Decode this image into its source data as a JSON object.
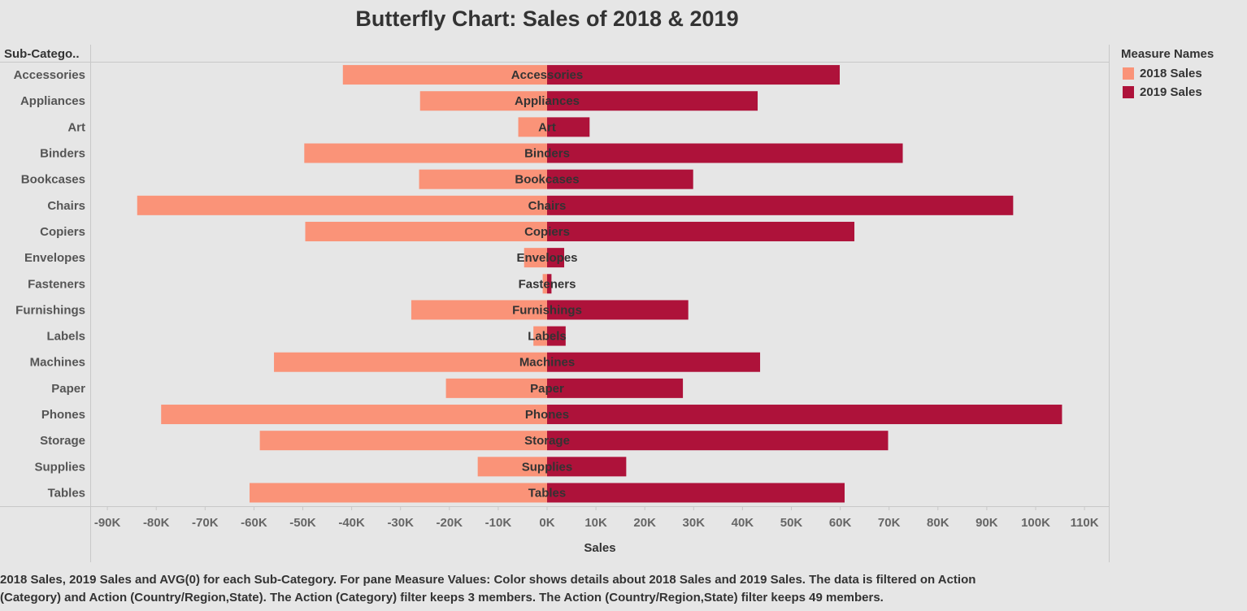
{
  "title": "Butterfly Chart: Sales of 2018 & 2019",
  "row_header": "Sub-Catego..",
  "legend": {
    "title": "Measure Names",
    "items": [
      {
        "label": "2018 Sales",
        "color": "#fa9378"
      },
      {
        "label": "2019 Sales",
        "color": "#ae123a"
      }
    ]
  },
  "caption": {
    "line1": "2018 Sales, 2019 Sales and AVG(0) for each Sub-Category.  For pane Measure Values:  Color shows details about 2018 Sales and 2019 Sales. The data is filtered on Action",
    "line2": "(Category) and Action (Country/Region,State). The Action (Category) filter keeps 3 members. The Action (Country/Region,State) filter keeps 49 members."
  },
  "chart_data": {
    "type": "bar",
    "orientation": "horizontal-diverging",
    "categories": [
      "Accessories",
      "Appliances",
      "Art",
      "Binders",
      "Bookcases",
      "Chairs",
      "Copiers",
      "Envelopes",
      "Fasteners",
      "Furnishings",
      "Labels",
      "Machines",
      "Paper",
      "Phones",
      "Storage",
      "Supplies",
      "Tables"
    ],
    "series": [
      {
        "name": "2018 Sales",
        "color": "#fa9378",
        "values": [
          -41800,
          -26000,
          -5900,
          -49700,
          -26200,
          -83900,
          -49500,
          -4700,
          -900,
          -27800,
          -2800,
          -55900,
          -20700,
          -79000,
          -58800,
          -14200,
          -60900
        ]
      },
      {
        "name": "2019 Sales",
        "color": "#ae123a",
        "values": [
          59900,
          43100,
          8700,
          72800,
          29900,
          95400,
          62900,
          3500,
          900,
          28900,
          3800,
          43600,
          27800,
          105400,
          69800,
          16200,
          60900
        ]
      }
    ],
    "xlabel": "Sales",
    "ylabel": "Sub-Catego..",
    "xlim": [
      -93000,
      115000
    ],
    "xticks": [
      -90000,
      -80000,
      -70000,
      -60000,
      -50000,
      -40000,
      -30000,
      -20000,
      -10000,
      0,
      10000,
      20000,
      30000,
      40000,
      50000,
      60000,
      70000,
      80000,
      90000,
      100000,
      110000
    ],
    "xtick_labels": [
      "-90K",
      "-80K",
      "-70K",
      "-60K",
      "-50K",
      "-40K",
      "-30K",
      "-20K",
      "-10K",
      "0K",
      "10K",
      "20K",
      "30K",
      "40K",
      "50K",
      "60K",
      "70K",
      "80K",
      "90K",
      "100K",
      "110K"
    ],
    "grid": false,
    "legend_position": "right"
  }
}
